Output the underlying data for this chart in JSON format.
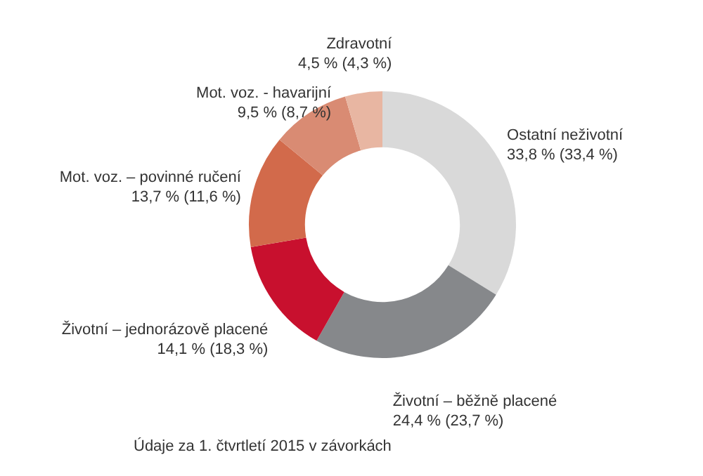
{
  "chart_data": {
    "type": "donut",
    "categories": [
      "Ostatní neživotní",
      "Životní  – běžně placené",
      "Životní  – jednorázově placené",
      "Mot. voz. – povinné ručení",
      "Mot. voz. - havarijní",
      "Zdravotní"
    ],
    "values": [
      33.8,
      24.4,
      14.1,
      13.7,
      9.5,
      4.5
    ],
    "colors": [
      "#d9d9d9",
      "#86888b",
      "#c8102e",
      "#d26a4b",
      "#d98b73",
      "#e8b6a2"
    ],
    "value_labels": [
      "33,8 % (33,4 %)",
      "24,4 % (23,7 %)",
      "14,1 % (18,3 %)",
      "13,7 % (11,6 %)",
      "9,5 % (8,7 %)",
      "4,5 % (4,3 %)"
    ],
    "annotations": [
      "Údaje za 1. čtvrtletí 2015 v závorkách"
    ]
  }
}
